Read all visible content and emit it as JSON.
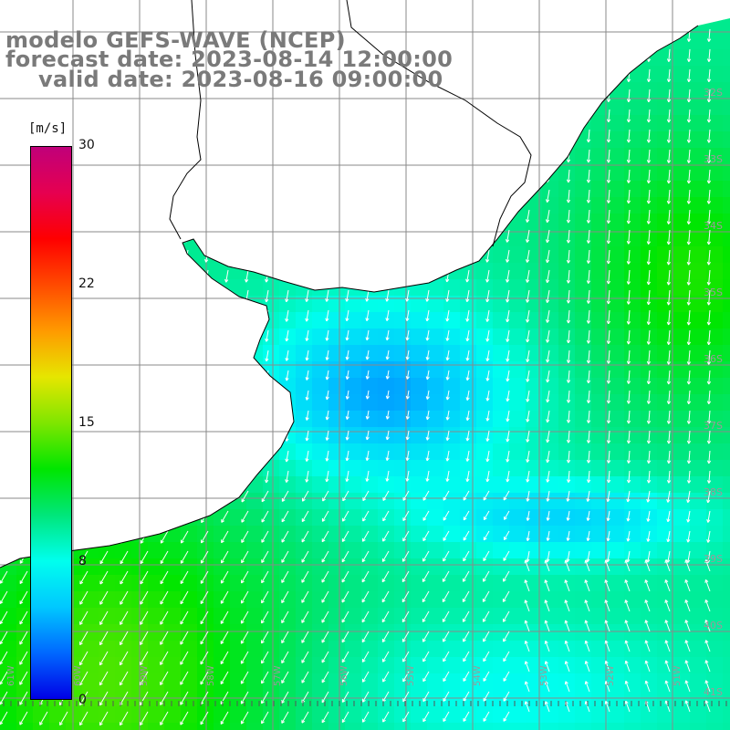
{
  "title": {
    "model": "modelo GEFS-WAVE (NCEP)",
    "forecast": "forecast date: 2023-08-14 12:00:00",
    "valid": "valid date: 2023-08-16 09:00:00"
  },
  "colorbar": {
    "unit": "[m/s]",
    "range": [
      0,
      30
    ],
    "labels": [
      "30",
      "22",
      "15",
      "8",
      "0"
    ],
    "colors": [
      "#0000e6",
      "#0068ff",
      "#00c8ff",
      "#00ffee",
      "#00e67a",
      "#00e600",
      "#7fe600",
      "#e6e600",
      "#ff9a00",
      "#ff4a00",
      "#ff0000",
      "#e60050",
      "#c0007a"
    ]
  },
  "map": {
    "lat_labels": [
      "32S",
      "33S",
      "34S",
      "35S",
      "36S",
      "37S",
      "38S",
      "39S",
      "40S",
      "41S"
    ],
    "lon_labels": [
      "61W",
      "60W",
      "59W",
      "58W",
      "57W",
      "56W",
      "55W",
      "54W",
      "53W",
      "52W",
      "51W"
    ],
    "land_color": "#ffffff",
    "grid_color": "#8a8a8a",
    "coast_color": "#000000",
    "arrow_color": "#ffffff"
  }
}
